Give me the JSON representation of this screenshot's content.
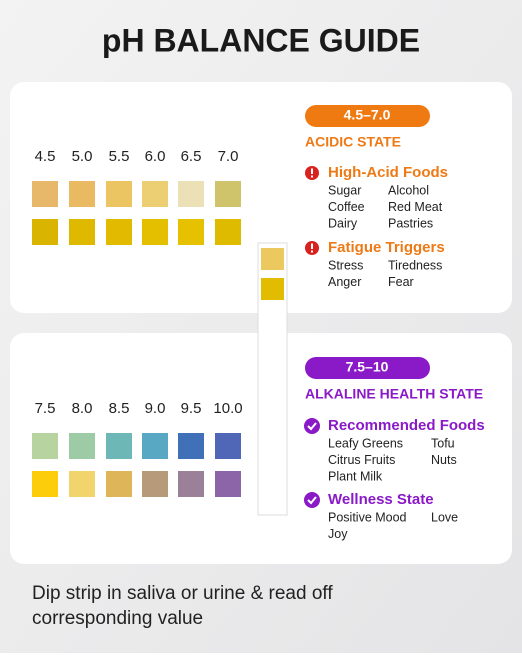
{
  "title": "pH BALANCE GUIDE",
  "sections": [
    {
      "range": "4.5–7.0",
      "heading": "ACIDIC STATE",
      "accent": "#ee7a16",
      "pill": "#f07a12",
      "scale": [
        "4.5",
        "5.0",
        "5.5",
        "6.0",
        "6.5",
        "7.0"
      ],
      "swatches_top": [
        "#e8b86a",
        "#e9ba62",
        "#ecc563",
        "#eccf72",
        "#ece0b6",
        "#cfc46c"
      ],
      "swatches_bottom": [
        "#d9b400",
        "#dfb800",
        "#e2bb00",
        "#e4bf00",
        "#e5c100",
        "#dfbb00"
      ],
      "groups": [
        {
          "title": "High-Acid Foods",
          "rows": [
            [
              "Sugar",
              "Alcohol"
            ],
            [
              "Coffee",
              "Red Meat"
            ],
            [
              "Dairy",
              "Pastries"
            ]
          ]
        },
        {
          "title": "Fatigue Triggers",
          "rows": [
            [
              "Stress",
              "Tiredness"
            ],
            [
              "Anger",
              "Fear"
            ]
          ]
        }
      ]
    },
    {
      "range": "7.5–10",
      "heading": "ALKALINE HEALTH STATE",
      "accent": "#8a1ac7",
      "pill": "#8a1ac7",
      "scale": [
        "7.5",
        "8.0",
        "8.5",
        "9.0",
        "9.5",
        "10.0"
      ],
      "swatches_top": [
        "#b7d3a0",
        "#9ccba6",
        "#6db7b7",
        "#58a8c3",
        "#3f70b8",
        "#5067b8"
      ],
      "swatches_bottom": [
        "#fccd0a",
        "#f1d46c",
        "#dfb559",
        "#b69a7a",
        "#9a8099",
        "#8c64a8"
      ],
      "groups": [
        {
          "title": "Recommended Foods",
          "rows": [
            [
              "Leafy Greens",
              "Tofu"
            ],
            [
              "Citrus Fruits",
              "Nuts"
            ],
            [
              "Plant Milk"
            ]
          ]
        },
        {
          "title": "Wellness State",
          "rows": [
            [
              "Positive Mood",
              "Love"
            ],
            [
              "Joy"
            ]
          ]
        }
      ]
    }
  ],
  "footer": [
    "Dip strip in saliva or urine & read off",
    "corresponding value"
  ]
}
